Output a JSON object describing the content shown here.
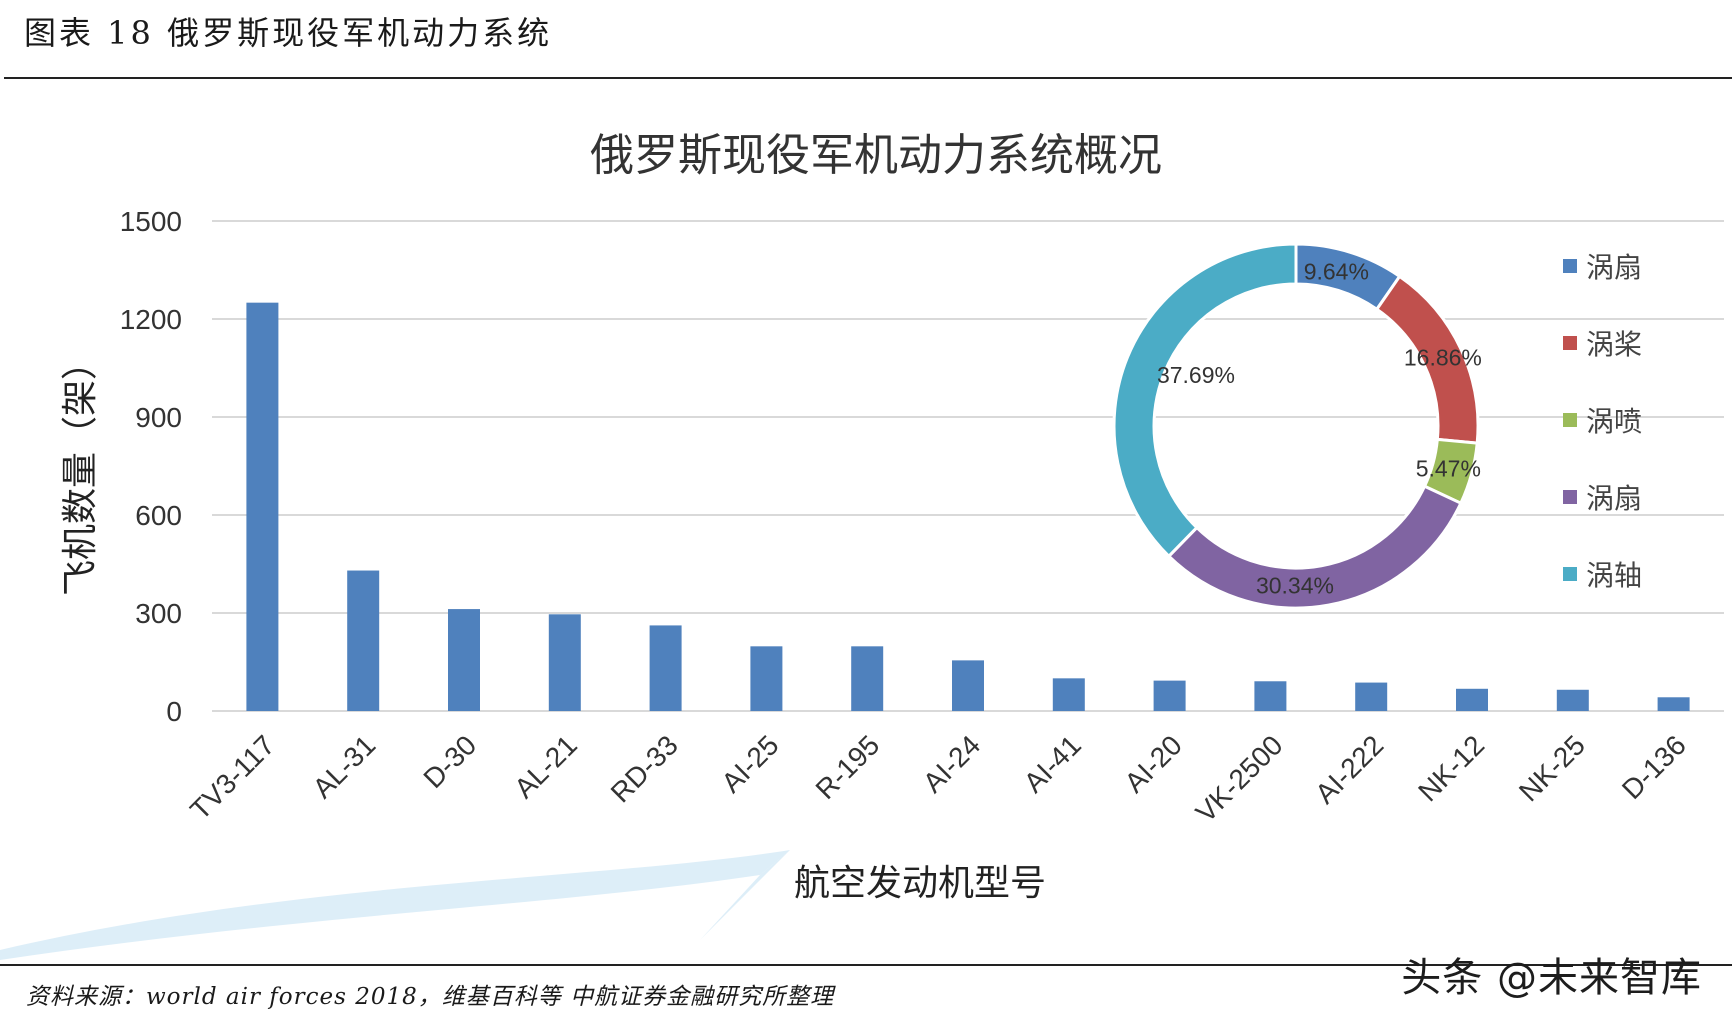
{
  "figure_caption": "图表 18 俄罗斯现役军机动力系统",
  "source_note": "资料来源：world air forces 2018，维基百科等 中航证券金融研究所整理",
  "watermark": "头条 @未来智库",
  "chart_data": [
    {
      "type": "bar",
      "title": "俄罗斯现役军机动力系统概况",
      "xlabel": "航空发动机型号",
      "ylabel": "飞机数量（架）",
      "ylim": [
        0,
        1500
      ],
      "yticks": [
        0,
        300,
        600,
        900,
        1200,
        1500
      ],
      "grid": true,
      "color": "#4f81bd",
      "categories": [
        "TV3-117",
        "AL-31",
        "D-30",
        "AL-21",
        "RD-33",
        "AI-25",
        "R-195",
        "AI-24",
        "AI-41",
        "AI-20",
        "VK-2500",
        "AI-222",
        "NK-12",
        "NK-25",
        "D-136"
      ],
      "values": [
        1250,
        430,
        312,
        296,
        262,
        198,
        198,
        155,
        100,
        93,
        91,
        87,
        68,
        65,
        42
      ]
    },
    {
      "type": "pie",
      "variant": "donut",
      "legend_position": "right",
      "labels": [
        "涡扇",
        "涡桨",
        "涡喷",
        "涡扇",
        "涡轴"
      ],
      "values": [
        9.64,
        16.86,
        5.47,
        30.34,
        37.69
      ],
      "display": [
        "9.64%",
        "16.86%",
        "5.47%",
        "30.34%",
        "37.69%"
      ],
      "colors": [
        "#4f81bd",
        "#c0504d",
        "#9bbb59",
        "#8064a2",
        "#4bacc6"
      ]
    }
  ]
}
